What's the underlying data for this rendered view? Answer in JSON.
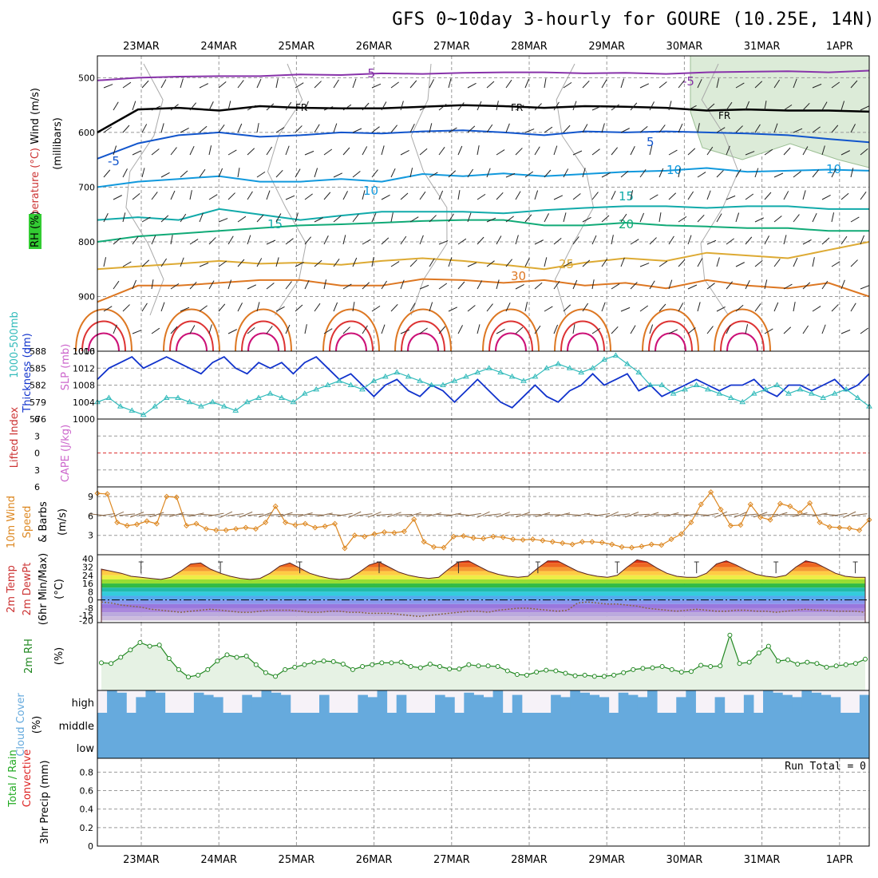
{
  "title": "GFS 0~10day 3-hourly for GOURE (10.25E, 14N)",
  "colors": {
    "wind": "#222222",
    "temperature": "#cc3333",
    "rh": "#22aa22",
    "slp": "#cc66cc",
    "thickness": "#1133cc",
    "cape": "#cc66cc",
    "lifted_index": "#cc3333",
    "wind10": "#dd8822",
    "rh2m": "#228822",
    "cloud": "#66aadd",
    "rain_total": "#22aa22",
    "rain_conv": "#dd2222"
  },
  "chart_data": [
    {
      "type": "contour",
      "name": "upper-air",
      "dates": [
        "23MAR",
        "24MAR",
        "25MAR",
        "26MAR",
        "27MAR",
        "28MAR",
        "29MAR",
        "30MAR",
        "31MAR",
        "1APR"
      ],
      "ylabel_parts": [
        "Wind (m/s)",
        "Temperature (°C)",
        "RH (%)",
        "(millibars)"
      ],
      "yticks": [
        "500",
        "600",
        "700",
        "800",
        "900",
        "1000"
      ],
      "ylim": [
        460,
        1000
      ],
      "isotherm_labels": [
        "-5",
        "-5",
        "-5",
        "FR",
        "FR",
        "FR",
        "5",
        "10",
        "10",
        "10",
        "15",
        "15",
        "20",
        "25",
        "30"
      ],
      "isotherms": [
        {
          "label": "-5",
          "p": [
            505,
            500,
            498,
            497,
            497,
            494,
            495,
            492,
            493,
            491,
            490,
            490,
            492,
            491,
            493,
            490,
            489,
            488,
            490,
            487
          ]
        },
        {
          "label": "FR",
          "p": [
            600,
            558,
            555,
            560,
            552,
            555,
            556,
            556,
            553,
            550,
            552,
            555,
            552,
            553,
            555,
            560,
            558,
            560,
            560,
            562
          ]
        },
        {
          "label": "5",
          "p": [
            648,
            620,
            605,
            600,
            608,
            605,
            600,
            602,
            598,
            596,
            600,
            605,
            598,
            600,
            598,
            600,
            602,
            605,
            612,
            618
          ]
        },
        {
          "label": "10",
          "p": [
            700,
            690,
            685,
            680,
            690,
            690,
            685,
            690,
            676,
            680,
            675,
            680,
            676,
            672,
            670,
            665,
            672,
            670,
            668,
            670
          ]
        },
        {
          "label": "15",
          "p": [
            760,
            755,
            760,
            740,
            750,
            760,
            752,
            745,
            745,
            745,
            748,
            742,
            738,
            735,
            735,
            738,
            735,
            735,
            740,
            740
          ]
        },
        {
          "label": "20",
          "p": [
            800,
            790,
            785,
            780,
            775,
            770,
            768,
            765,
            762,
            760,
            760,
            770,
            770,
            765,
            770,
            772,
            775,
            775,
            780,
            780
          ]
        },
        {
          "label": "25",
          "p": [
            850,
            845,
            840,
            835,
            840,
            838,
            842,
            835,
            830,
            835,
            842,
            850,
            838,
            830,
            835,
            820,
            825,
            830,
            815,
            800
          ]
        },
        {
          "label": "30",
          "p": [
            910,
            880,
            880,
            875,
            870,
            870,
            880,
            880,
            868,
            870,
            875,
            870,
            880,
            875,
            885,
            870,
            880,
            885,
            875,
            900
          ]
        }
      ]
    },
    {
      "type": "line",
      "name": "slp-thickness",
      "ylabel_left": "1000-500mb Thickness (dm)",
      "ylabel_right": "SLP (mb)",
      "yticks_thickness": [
        "576",
        "579",
        "582",
        "585",
        "588"
      ],
      "yticks_slp": [
        "1000",
        "1004",
        "1008",
        "1012",
        "1016"
      ],
      "series": [
        {
          "name": "thickness",
          "values": [
            583,
            585,
            586,
            587,
            585,
            586,
            587,
            586,
            585,
            584,
            586,
            587,
            585,
            584,
            586,
            585,
            586,
            584,
            586,
            587,
            585,
            583,
            584,
            582,
            580,
            582,
            583,
            581,
            580,
            582,
            581,
            579,
            581,
            583,
            581,
            579,
            578,
            580,
            582,
            580,
            579,
            581,
            582,
            584,
            582,
            583,
            584,
            581,
            582,
            580,
            581,
            582,
            583,
            582,
            581,
            582,
            582,
            583,
            581,
            580,
            582,
            582,
            581,
            582,
            583,
            581,
            582,
            584
          ]
        },
        {
          "name": "slp",
          "values": [
            1004,
            1005,
            1003,
            1002,
            1001,
            1003,
            1005,
            1005,
            1004,
            1003,
            1004,
            1003,
            1002,
            1004,
            1005,
            1006,
            1005,
            1004,
            1006,
            1007,
            1008,
            1009,
            1008,
            1007,
            1009,
            1010,
            1011,
            1010,
            1009,
            1008,
            1008,
            1009,
            1010,
            1011,
            1012,
            1011,
            1010,
            1009,
            1010,
            1012,
            1013,
            1012,
            1011,
            1012,
            1014,
            1015,
            1013,
            1011,
            1008,
            1008,
            1006,
            1007,
            1008,
            1007,
            1006,
            1005,
            1004,
            1006,
            1007,
            1008,
            1006,
            1007,
            1006,
            1005,
            1006,
            1007,
            1005,
            1003
          ]
        }
      ]
    },
    {
      "type": "line",
      "name": "cape-li",
      "ylabel_parts": [
        "Lifted Index",
        "CAPE (J/kg)"
      ],
      "yticks": [
        "6",
        "3",
        "0",
        "3",
        "6"
      ],
      "zero_line": 0
    },
    {
      "type": "line",
      "name": "wind10",
      "ylabel_parts": [
        "10m Wind",
        "Speed",
        "& Barbs",
        "(m/s)"
      ],
      "yticks": [
        "3",
        "6",
        "9"
      ],
      "ylim": [
        0,
        10.5
      ],
      "values": [
        9.5,
        9.4,
        5,
        4.5,
        4.7,
        5.2,
        4.8,
        9,
        8.9,
        4.5,
        4.8,
        4,
        3.8,
        3.8,
        4,
        4.2,
        4,
        5,
        7.5,
        5,
        4.6,
        4.8,
        4.2,
        4.4,
        4.8,
        1,
        3,
        2.8,
        3.2,
        3.5,
        3.4,
        3.6,
        5.5,
        2,
        1.2,
        1.1,
        2.8,
        2.9,
        2.6,
        2.5,
        2.8,
        2.7,
        2.4,
        2.3,
        2.4,
        2.2,
        2,
        1.8,
        1.6,
        2,
        2,
        1.9,
        1.6,
        1.2,
        1.1,
        1.3,
        1.6,
        1.5,
        2.4,
        3.2,
        5,
        7.8,
        9.7,
        7,
        4.5,
        4.6,
        7.8,
        5.8,
        5.4,
        7.9,
        7.5,
        6.5,
        8,
        5,
        4.3,
        4.2,
        4.1,
        3.8,
        5.4
      ]
    },
    {
      "type": "area",
      "name": "temp2m",
      "ylabel_parts": [
        "2m Temp",
        "2m DewPt",
        "(6hr Min/Max)",
        "(°C)"
      ],
      "yticks": [
        "-20",
        "-15",
        "-8",
        "0",
        "8",
        "16",
        "24",
        "32",
        "40"
      ],
      "ylim": [
        -22,
        44
      ],
      "temp": [
        30,
        28,
        26,
        23,
        22,
        21,
        20,
        22,
        28,
        35,
        36,
        30,
        26,
        23,
        21,
        20,
        21,
        26,
        33,
        36,
        31,
        26,
        23,
        21,
        20,
        21,
        27,
        34,
        37,
        32,
        27,
        24,
        22,
        21,
        22,
        30,
        37,
        38,
        33,
        28,
        25,
        23,
        22,
        23,
        31,
        38,
        38,
        33,
        28,
        25,
        23,
        22,
        24,
        32,
        39,
        37,
        31,
        26,
        23,
        22,
        22,
        26,
        35,
        38,
        34,
        29,
        25,
        23,
        22,
        24,
        32,
        38,
        36,
        31,
        26,
        23,
        22,
        22
      ],
      "dewpoint": [
        -2,
        -3,
        -5,
        -6,
        -7,
        -9,
        -10,
        -11,
        -12,
        -11,
        -10,
        -9,
        -10,
        -11,
        -12,
        -12,
        -11,
        -10,
        -10,
        -10,
        -11,
        -12,
        -12,
        -11,
        -11,
        -12,
        -12,
        -13,
        -13,
        -13,
        -14,
        -15,
        -16,
        -15,
        -14,
        -13,
        -12,
        -11,
        -11,
        -12,
        -10,
        -9,
        -8,
        -8,
        -9,
        -10,
        -11,
        -10,
        -3,
        -2,
        -3,
        -4,
        -4,
        -5,
        -6,
        -8,
        -9,
        -10,
        -11,
        -10,
        -9,
        -10,
        -11,
        -11,
        -10,
        -10,
        -11,
        -11,
        -12,
        -11,
        -10,
        -9,
        -10,
        -10,
        -11,
        -11,
        -11,
        -12
      ]
    },
    {
      "type": "area",
      "name": "rh2m",
      "ylabel_parts": [
        "2m RH",
        "(%)"
      ],
      "ylim": [
        0,
        100
      ],
      "values": [
        41,
        40,
        50,
        62,
        74,
        68,
        70,
        48,
        30,
        18,
        21,
        30,
        44,
        54,
        50,
        52,
        38,
        25,
        19,
        30,
        34,
        38,
        42,
        44,
        43,
        39,
        30,
        35,
        38,
        41,
        41,
        42,
        35,
        33,
        39,
        35,
        31,
        31,
        38,
        36,
        36,
        35,
        28,
        22,
        21,
        26,
        29,
        28,
        24,
        20,
        21,
        19,
        19,
        21,
        25,
        30,
        32,
        33,
        35,
        30,
        26,
        27,
        37,
        35,
        36,
        86,
        40,
        42,
        57,
        68,
        44,
        46,
        39,
        42,
        40,
        34,
        36,
        38,
        40,
        47
      ]
    },
    {
      "type": "heatmap",
      "name": "cloud",
      "ylabel_parts": [
        "Cloud Cover",
        "(%)"
      ],
      "levels": [
        "high",
        "middle",
        "low"
      ],
      "high": [
        0,
        1,
        1,
        0,
        1,
        1,
        1,
        0,
        0,
        0,
        1,
        1,
        1,
        0,
        0,
        1,
        1,
        1,
        1,
        1,
        0,
        0,
        0,
        1,
        0,
        0,
        0,
        1,
        1,
        1,
        0,
        1,
        0,
        0,
        0,
        1,
        1,
        0,
        1,
        1,
        1,
        1,
        0,
        1,
        0,
        0,
        0,
        1,
        1,
        1,
        1,
        1,
        1,
        0,
        1,
        1,
        1,
        1,
        0,
        0,
        1,
        1,
        0,
        0,
        1,
        0,
        0,
        1,
        0,
        1,
        1,
        1,
        1,
        1,
        1,
        1,
        1,
        0,
        0,
        1
      ]
    },
    {
      "type": "bar",
      "name": "precip",
      "ylabel_parts": [
        "Total / Rain",
        "Convective",
        "3hr Precip (mm)"
      ],
      "yticks": [
        "0",
        "0.2",
        "0.4",
        "0.6",
        "0.8"
      ],
      "ylim": [
        0,
        0.95
      ],
      "run_total": "Run Total = 0",
      "values": []
    }
  ]
}
